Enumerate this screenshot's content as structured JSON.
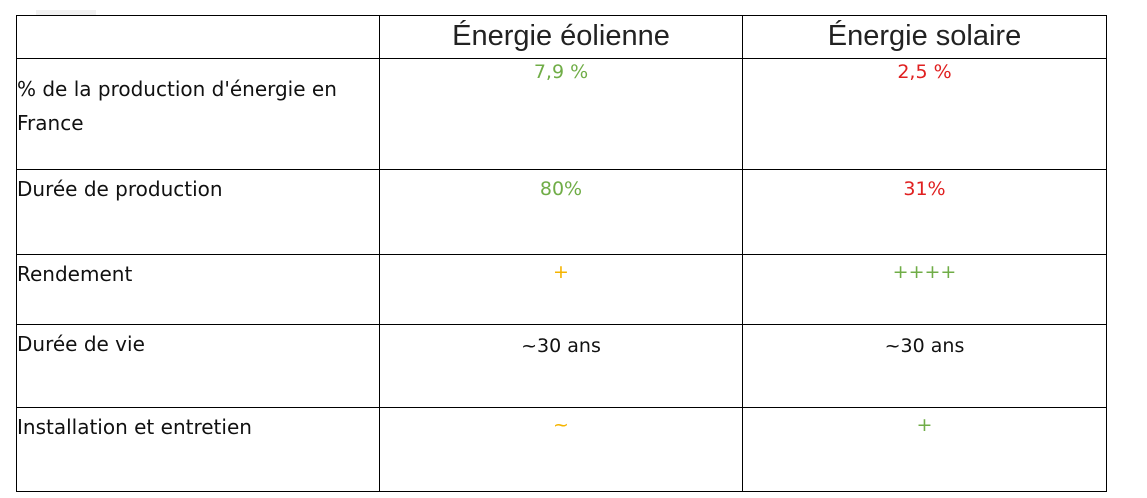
{
  "table": {
    "headers": [
      "",
      "Énergie éolienne",
      "Énergie solaire"
    ],
    "rows": [
      {
        "label": "% de la production d'énergie en France",
        "eolienne": "7,9 %",
        "solaire": "2,5 %"
      },
      {
        "label": "Durée de production",
        "eolienne": "80%",
        "solaire": "31%"
      },
      {
        "label": "Rendement",
        "eolienne": "+",
        "solaire": "++++"
      },
      {
        "label": "Durée de vie",
        "eolienne": "~30 ans",
        "solaire": "~30 ans"
      },
      {
        "label": "Installation et entretien",
        "eolienne": "~",
        "solaire": "+"
      }
    ]
  },
  "colors": {
    "good": "#70ad47",
    "bad": "#e02020",
    "medium": "#f5b400",
    "neutral": "#111111"
  }
}
